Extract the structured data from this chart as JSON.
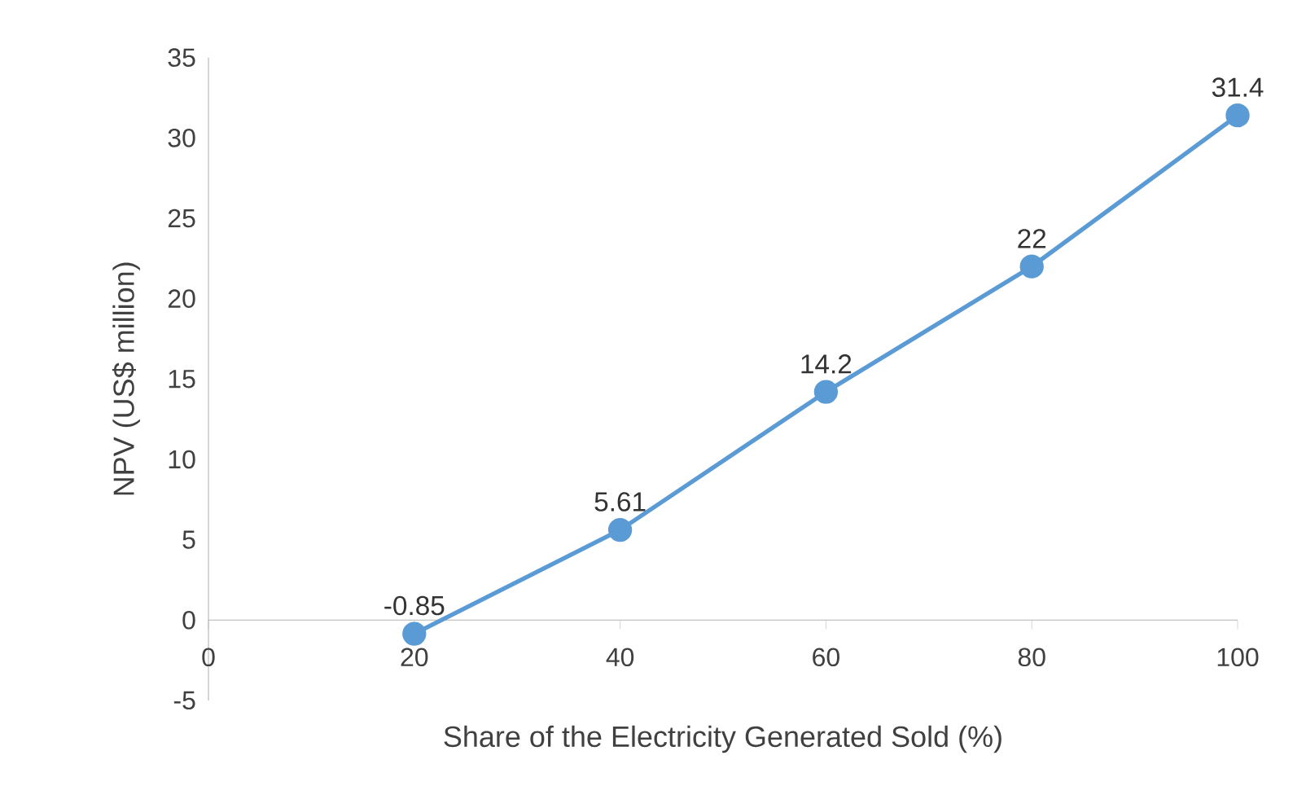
{
  "chart_data": {
    "type": "line",
    "xlabel": "Share of the Electricity Generated Sold (%)",
    "ylabel": "NPV (US$ million)",
    "x": [
      20,
      40,
      60,
      80,
      100
    ],
    "values": [
      -0.85,
      5.61,
      14.2,
      22,
      31.4
    ],
    "color": "#5b9bd5",
    "marker": "circle",
    "line_style": "solid",
    "data_labels": true,
    "xlim": [
      0,
      100
    ],
    "xticks": [
      0,
      20,
      40,
      60,
      80,
      100
    ],
    "ylim": [
      -5,
      35
    ],
    "yticks": [
      -5,
      0,
      5,
      10,
      15,
      20,
      25,
      30,
      35
    ]
  }
}
